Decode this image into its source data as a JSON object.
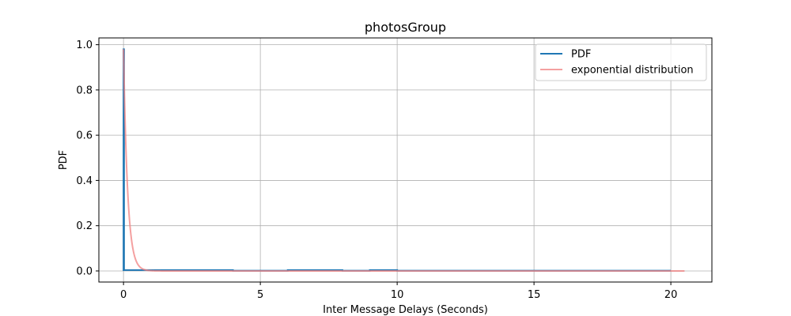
{
  "chart_data": {
    "type": "line",
    "title": "photosGroup",
    "xlabel": "Inter Message Delays (Seconds)",
    "ylabel": "PDF",
    "xlim": [
      -0.9,
      21.5
    ],
    "ylim": [
      -0.049,
      1.03
    ],
    "xticks": [
      0,
      5,
      10,
      15,
      20
    ],
    "yticks": [
      0.0,
      0.2,
      0.4,
      0.6,
      0.8,
      1.0
    ],
    "xtick_labels": [
      "0",
      "5",
      "10",
      "15",
      "20"
    ],
    "ytick_labels": [
      "0.0",
      "0.2",
      "0.4",
      "0.6",
      "0.8",
      "1.0"
    ],
    "grid": true,
    "legend_position": "top-right",
    "series": [
      {
        "name": "PDF",
        "color": "#1f77b4",
        "style": "step",
        "x": [
          0,
          0,
          0.02,
          0.02,
          4,
          4,
          6,
          6,
          8,
          8,
          9,
          9,
          10,
          10,
          20
        ],
        "y": [
          0,
          0.98,
          0.98,
          0.004,
          0.004,
          0.001,
          0.001,
          0.004,
          0.004,
          0.001,
          0.001,
          0.004,
          0.004,
          0.001,
          0.001
        ]
      },
      {
        "name": "exponential distribution",
        "color": "#f08080",
        "style": "exponential",
        "rate": 6.7,
        "amplitude": 0.98,
        "x_start": 0,
        "x_end": 20.5
      }
    ]
  }
}
